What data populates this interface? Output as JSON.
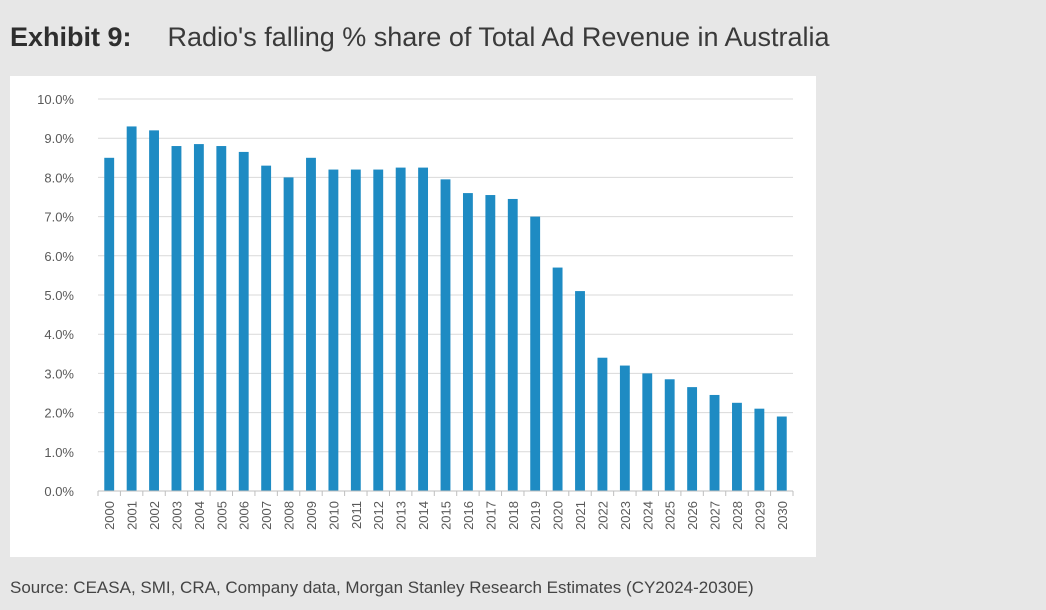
{
  "header": {
    "label": "Exhibit 9:",
    "title": "Radio's falling % share of Total Ad Revenue in Australia"
  },
  "source": "Source: CEASA, SMI, CRA, Company data, Morgan Stanley Research Estimates (CY2024-2030E)",
  "colors": {
    "bar": "#1e8bc3",
    "grid": "#d9d9d9",
    "axis": "#bfbfbf",
    "background": "#e7e7e7",
    "panel": "#ffffff"
  },
  "chart_data": {
    "type": "bar",
    "title": "",
    "xlabel": "",
    "ylabel": "",
    "ylim": [
      0,
      10
    ],
    "y_ticks": [
      0,
      1,
      2,
      3,
      4,
      5,
      6,
      7,
      8,
      9,
      10
    ],
    "y_tick_labels": [
      "0.0%",
      "1.0%",
      "2.0%",
      "3.0%",
      "4.0%",
      "5.0%",
      "6.0%",
      "7.0%",
      "8.0%",
      "9.0%",
      "10.0%"
    ],
    "grid": true,
    "legend": "none",
    "categories": [
      "2000",
      "2001",
      "2002",
      "2003",
      "2004",
      "2005",
      "2006",
      "2007",
      "2008",
      "2009",
      "2010",
      "2011",
      "2012",
      "2013",
      "2014",
      "2015",
      "2016",
      "2017",
      "2018",
      "2019",
      "2020",
      "2021",
      "2022",
      "2023",
      "2024",
      "2025",
      "2026",
      "2027",
      "2028",
      "2029",
      "2030"
    ],
    "values": [
      8.5,
      9.3,
      9.2,
      8.8,
      8.85,
      8.8,
      8.65,
      8.3,
      8.0,
      8.5,
      8.2,
      8.2,
      8.2,
      8.25,
      8.25,
      7.95,
      7.6,
      7.55,
      7.45,
      7.0,
      5.7,
      5.1,
      3.4,
      3.2,
      3.0,
      2.85,
      2.65,
      2.45,
      2.25,
      2.1,
      1.9
    ]
  }
}
